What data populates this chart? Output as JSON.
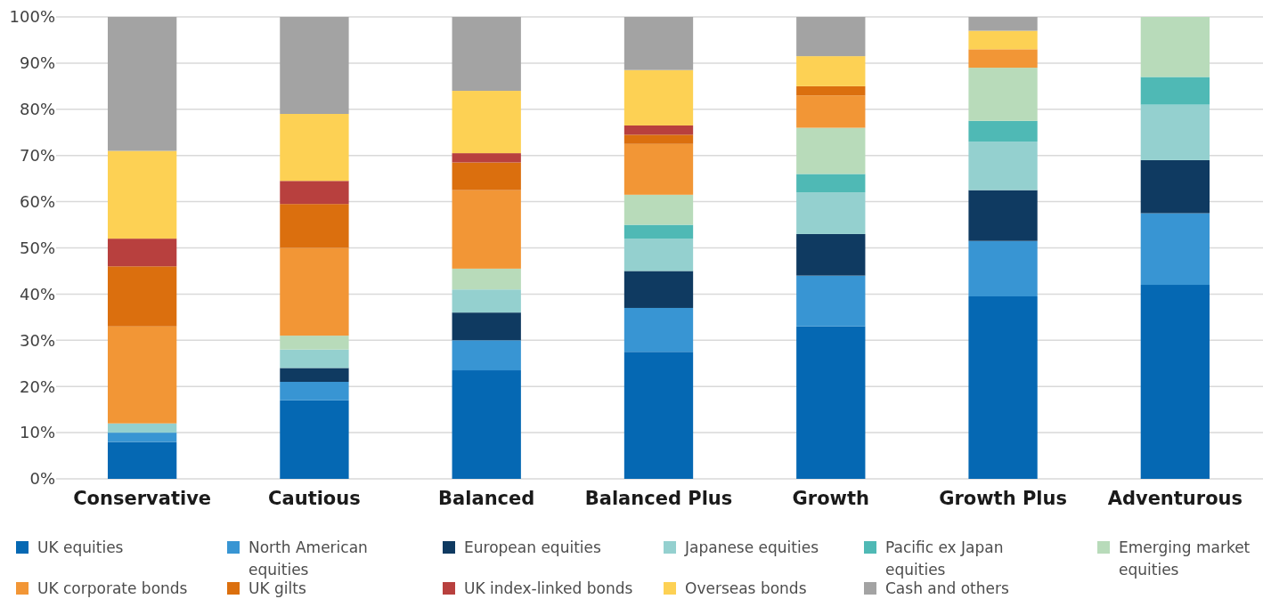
{
  "chart_data": {
    "type": "bar",
    "stacked": true,
    "categories": [
      "Conservative",
      "Cautious",
      "Balanced",
      "Balanced Plus",
      "Growth",
      "Growth Plus",
      "Adventurous"
    ],
    "ylim": [
      0,
      100
    ],
    "yticks": [
      {
        "value": 0,
        "label": "0%"
      },
      {
        "value": 10,
        "label": "10%"
      },
      {
        "value": 20,
        "label": "20%"
      },
      {
        "value": 30,
        "label": "30%"
      },
      {
        "value": 40,
        "label": "40%"
      },
      {
        "value": 50,
        "label": "50%"
      },
      {
        "value": 60,
        "label": "60%"
      },
      {
        "value": 70,
        "label": "70%"
      },
      {
        "value": 80,
        "label": "80%"
      },
      {
        "value": 90,
        "label": "90%"
      },
      {
        "value": 100,
        "label": "100%"
      }
    ],
    "grid": "y",
    "legend": "bottom",
    "series": [
      {
        "name": "UK equities",
        "color": "#0568b3",
        "values": [
          8,
          17,
          23.5,
          27.5,
          33,
          39.5,
          42
        ]
      },
      {
        "name": "North American equities",
        "color": "#3895d3",
        "values": [
          2,
          4,
          6.5,
          9.5,
          11,
          12,
          15.5
        ]
      },
      {
        "name": "European equities",
        "color": "#0f3a61",
        "values": [
          0,
          3,
          6,
          8,
          9,
          11,
          11.5
        ]
      },
      {
        "name": "Japanese equities",
        "color": "#94d0cf",
        "values": [
          2,
          4,
          5,
          7,
          9,
          10.5,
          12
        ]
      },
      {
        "name": "Pacific ex Japan equities",
        "color": "#4fb9b5",
        "values": [
          0,
          0,
          0,
          3,
          4,
          4.5,
          6
        ]
      },
      {
        "name": "Emerging market equities",
        "color": "#b8dbba",
        "values": [
          0,
          3,
          4.5,
          6.5,
          10,
          11.5,
          13
        ]
      },
      {
        "name": "UK corporate bonds",
        "color": "#f29636",
        "values": [
          21,
          19,
          17,
          11,
          7,
          4,
          0
        ]
      },
      {
        "name": "UK gilts",
        "color": "#db6f0e",
        "values": [
          13,
          9.5,
          6,
          2,
          2,
          0,
          0
        ]
      },
      {
        "name": "UK index-linked bonds",
        "color": "#b8403e",
        "values": [
          6,
          5,
          2,
          2,
          0,
          0,
          0
        ]
      },
      {
        "name": "Overseas bonds",
        "color": "#fdd154",
        "values": [
          19,
          14.5,
          13.5,
          12,
          6.5,
          4,
          0
        ]
      },
      {
        "name": "Cash and others",
        "color": "#a3a3a3",
        "values": [
          29,
          21,
          16,
          11.5,
          8.5,
          3,
          0
        ]
      }
    ]
  }
}
